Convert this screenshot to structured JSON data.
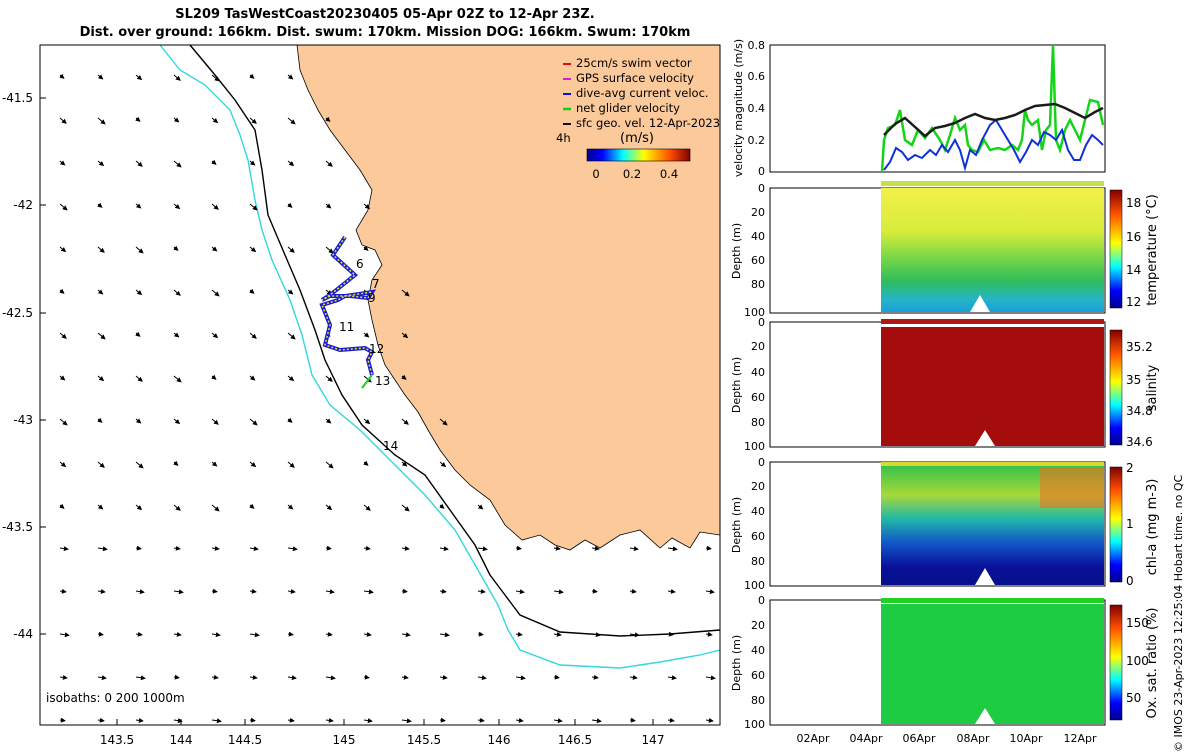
{
  "title": {
    "line1": "SL209 TasWestCoast20230405 05-Apr 02Z to 12-Apr 23Z.",
    "line2": "Dist. over ground: 166km. Dist. swum: 170km. Mission DOG: 166km. Swum: 170km"
  },
  "colors": {
    "land": "#fbc99a",
    "isobath_200": "#000000",
    "isobath_1000": "#2fd8de",
    "track_outline": "#1b1bd6",
    "track_inner": "#d8e832",
    "net_velocity": "#15d418",
    "dive_avg": "#1030d8",
    "sfc_geo": "#1a1a1a",
    "salinity_fill": "#a50d0d",
    "oxygen_fill": "#1ecc44"
  },
  "map": {
    "lon_ticks": [
      "143.5",
      "144",
      "144.5",
      "145",
      "145.5",
      "146",
      "146.5",
      "147"
    ],
    "lat_ticks": [
      "-41.5",
      "-42",
      "-42.5",
      "-43",
      "-43.5",
      "-44"
    ],
    "day_labels": [
      "6",
      "7",
      "9",
      "11",
      "12",
      "13",
      "14"
    ],
    "isobath_label": "isobaths: 0   200  1000m",
    "legend": [
      {
        "label": "25cm/s swim vector",
        "color": "#e01010"
      },
      {
        "label": "GPS surface velocity",
        "color": "#d020d0"
      },
      {
        "label": "dive-avg current veloc.",
        "color": "#1010e0"
      },
      {
        "label": "net glider velocity",
        "color": "#10d010"
      },
      {
        "label": "sfc geo. vel. 12-Apr-2023",
        "color": "#101010"
      }
    ],
    "colorbar": {
      "time_label": "4h",
      "unit": "(m/s)",
      "ticks": [
        "0",
        "0.2",
        "0.4"
      ]
    }
  },
  "panels": {
    "velocity": {
      "ylabel": "velocity magnitude (m/s)",
      "yticks": [
        "0",
        "0.2",
        "0.4",
        "0.6",
        "0.8"
      ],
      "ylim": [
        0,
        0.8
      ]
    },
    "temperature": {
      "ylabel": "Depth (m)",
      "cblabel": "temperature (°C)",
      "cbticks": [
        "12",
        "14",
        "16",
        "18"
      ]
    },
    "salinity": {
      "ylabel": "Depth (m)",
      "cblabel": "salinity",
      "cbticks": [
        "34.6",
        "34.8",
        "35",
        "35.2"
      ]
    },
    "chla": {
      "ylabel": "Depth (m)",
      "cblabel": "chl-a (mg m-3)",
      "cbticks": [
        "0",
        "1",
        "2"
      ]
    },
    "oxygen": {
      "ylabel": "Depth (m)",
      "cblabel": "Ox. sat. ratio (%)",
      "cbticks": [
        "50",
        "100",
        "150"
      ]
    },
    "depth_ticks": [
      "0",
      "20",
      "40",
      "60",
      "80",
      "100"
    ],
    "date_ticks": [
      "02Apr",
      "04Apr",
      "06Apr",
      "08Apr",
      "10Apr",
      "12Apr"
    ]
  },
  "side_note": "© IMOS 23-Apr-2023 12:25:04 Hobart time. no QC"
}
